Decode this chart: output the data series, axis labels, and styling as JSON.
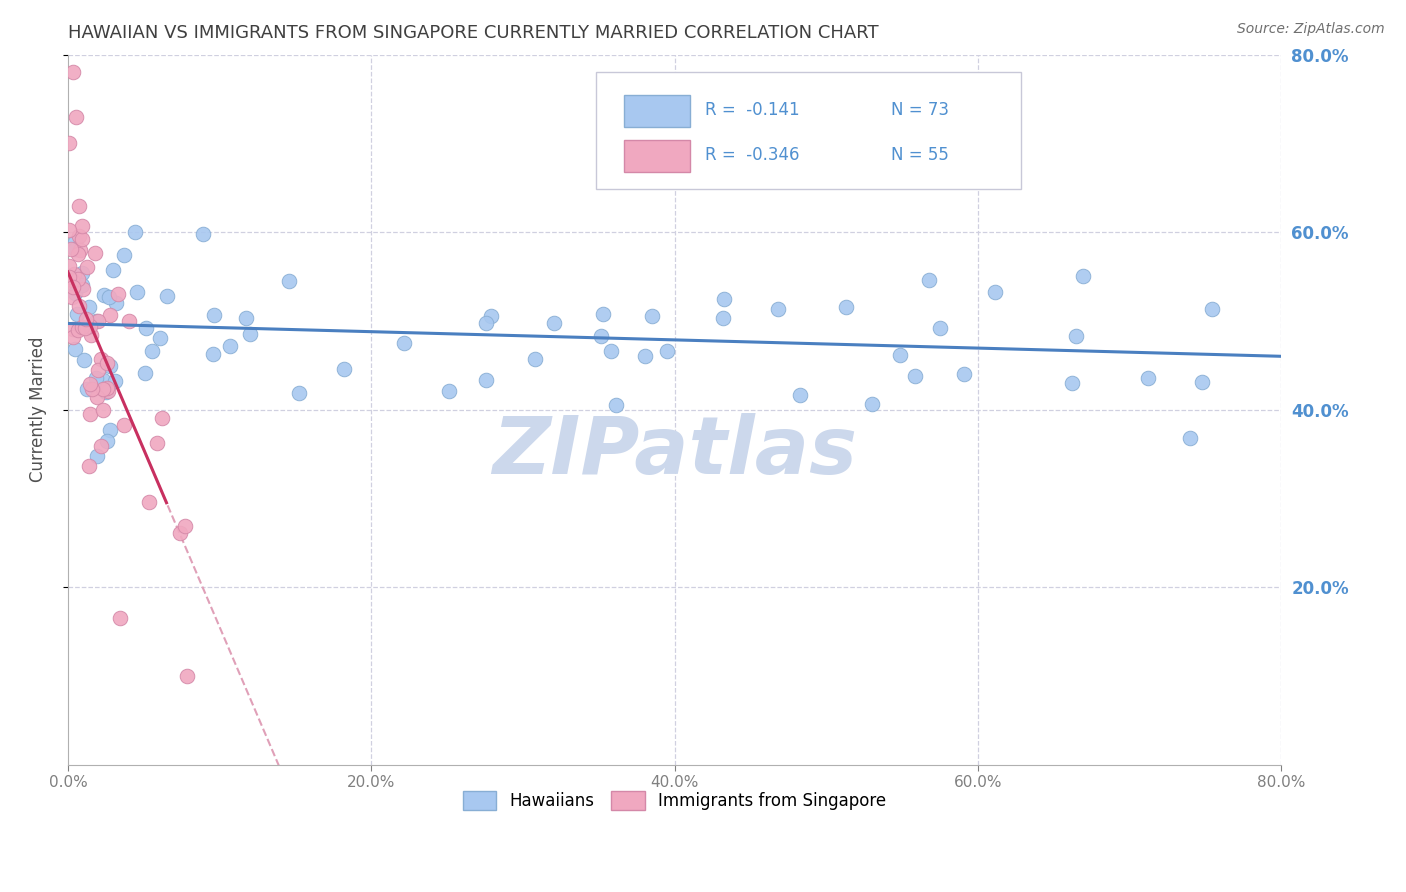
{
  "title": "HAWAIIAN VS IMMIGRANTS FROM SINGAPORE CURRENTLY MARRIED CORRELATION CHART",
  "source_text": "Source: ZipAtlas.com",
  "ylabel": "Currently Married",
  "xlim": [
    0.0,
    0.8
  ],
  "ylim": [
    0.0,
    0.8
  ],
  "xtick_vals": [
    0.0,
    0.2,
    0.4,
    0.6,
    0.8
  ],
  "xtick_labels": [
    "0.0%",
    "20.0%",
    "40.0%",
    "60.0%",
    "80.0%"
  ],
  "ytick_vals": [
    0.2,
    0.4,
    0.6,
    0.8
  ],
  "ytick_labels": [
    "20.0%",
    "40.0%",
    "60.0%",
    "80.0%"
  ],
  "blue_scatter_color": "#a8c8f0",
  "blue_scatter_edge": "#88aed4",
  "pink_scatter_color": "#f0a8c0",
  "pink_scatter_edge": "#d488a8",
  "blue_line_color": "#4a7fc0",
  "pink_line_color": "#c83060",
  "pink_dashed_color": "#e0a0b8",
  "grid_color": "#d0d0e0",
  "title_color": "#404040",
  "watermark_color": "#ccd8ec",
  "legend_box_color": "#a8c8f0",
  "legend_box2_color": "#f0a8c0",
  "right_tick_color": "#5090d0"
}
